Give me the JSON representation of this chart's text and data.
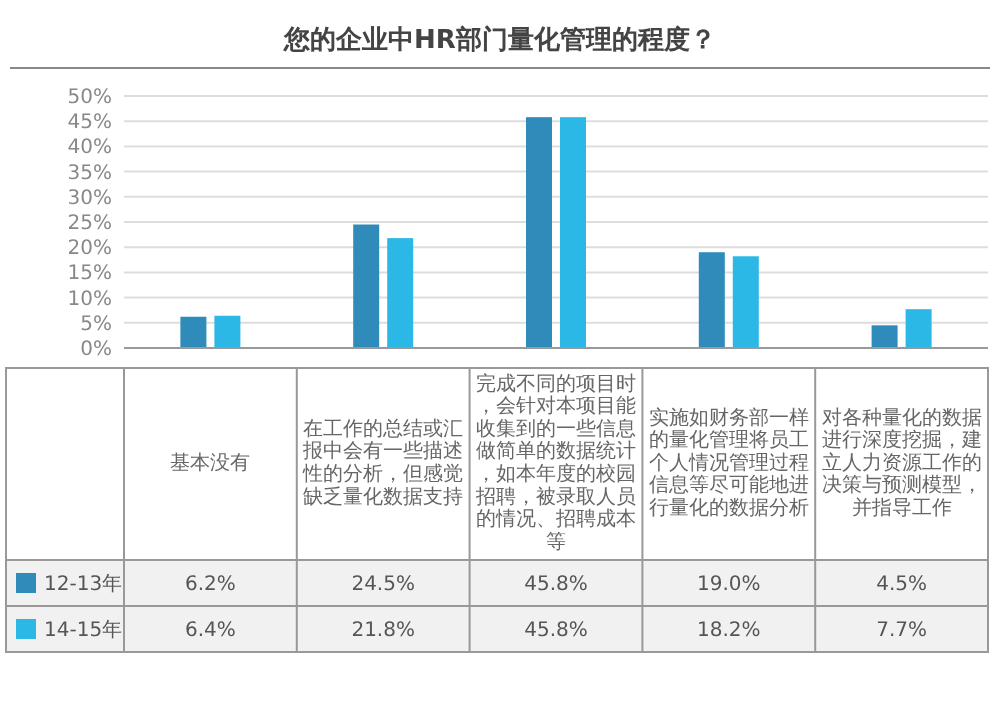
{
  "chart_data": {
    "type": "bar",
    "title": "您的企业中HR部门量化管理的程度？",
    "categories": [
      "基本没有",
      "在工作的总结或汇报中会有一些描述性的分析，但感觉缺乏量化数据支持",
      "完成不同的项目时，会针对本项目能收集到的一些信息做简单的数据统计，如本年度的校园招聘，被录取人员的情况、招聘成本等",
      "实施如财务部一样的量化管理将员工个人情况管理过程信息等尽可能地进行量化的数据分析",
      "对各种量化的数据进行深度挖掘，建立人力资源工作的决策与预测模型，并指导工作"
    ],
    "series": [
      {
        "name": "12-13年",
        "color": "#2f8cba",
        "values": [
          6.2,
          24.5,
          45.8,
          19.0,
          4.5
        ],
        "value_labels": [
          "6.2%",
          "24.5%",
          "45.8%",
          "19.0%",
          "4.5%"
        ]
      },
      {
        "name": "14-15年",
        "color": "#2bb8e6",
        "values": [
          6.4,
          21.8,
          45.8,
          18.2,
          7.7
        ],
        "value_labels": [
          "6.4%",
          "21.8%",
          "45.8%",
          "18.2%",
          "7.7%"
        ]
      }
    ],
    "ylim": [
      0,
      50
    ],
    "yticks": [
      {
        "value": 0,
        "label": "0%"
      },
      {
        "value": 5,
        "label": "5%"
      },
      {
        "value": 10,
        "label": "10%"
      },
      {
        "value": 15,
        "label": "15%"
      },
      {
        "value": 20,
        "label": "20%"
      },
      {
        "value": 25,
        "label": "25%"
      },
      {
        "value": 30,
        "label": "30%"
      },
      {
        "value": 35,
        "label": "35%"
      },
      {
        "value": 40,
        "label": "40%"
      },
      {
        "value": 45,
        "label": "45%"
      },
      {
        "value": 50,
        "label": "50%"
      }
    ],
    "grid": "y",
    "legend": "bottom"
  }
}
